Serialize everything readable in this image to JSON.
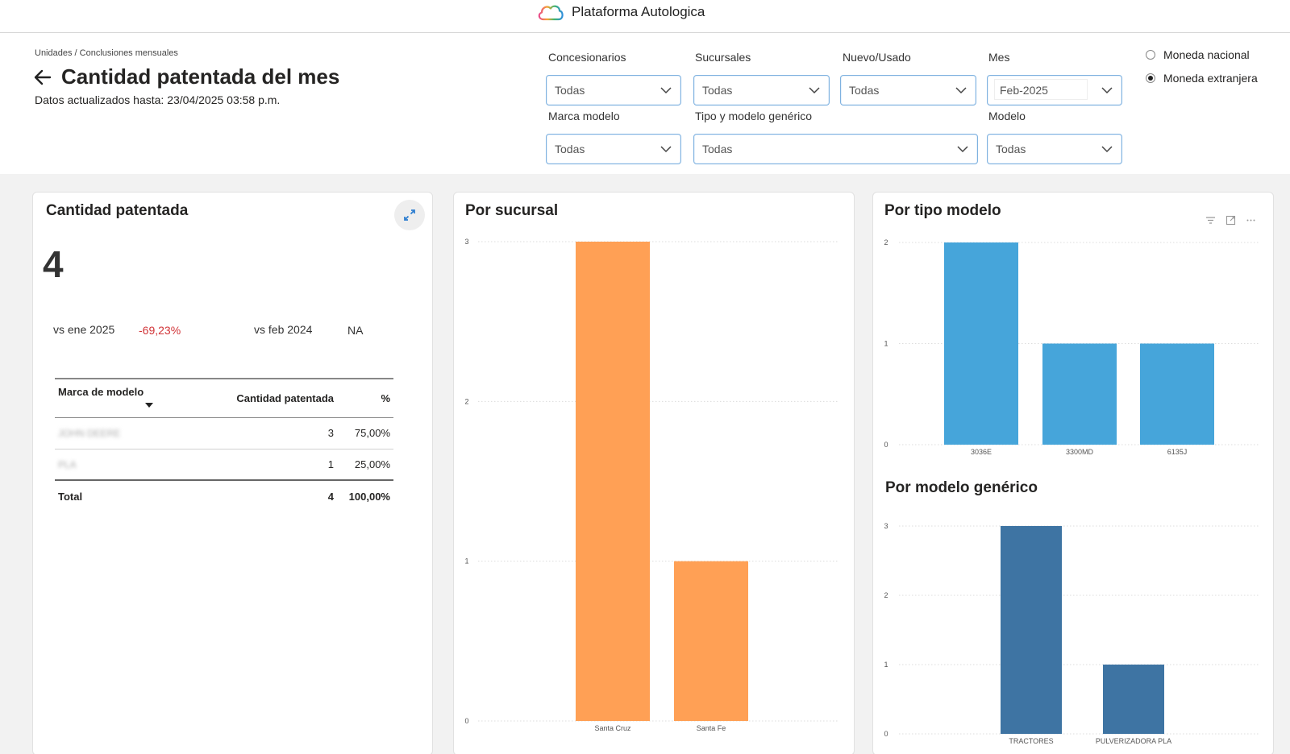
{
  "app": {
    "name": "Plataforma Autologica"
  },
  "header": {
    "breadcrumb": "Unidades / Conclusiones mensuales",
    "title": "Cantidad patentada del mes",
    "updated": "Datos actualizados hasta: 23/04/2025 03:58 p.m."
  },
  "filters": {
    "concesionarios": {
      "label": "Concesionarios",
      "value": "Todas"
    },
    "sucursales": {
      "label": "Sucursales",
      "value": "Todas"
    },
    "nuevo_usado": {
      "label": "Nuevo/Usado",
      "value": "Todas"
    },
    "mes": {
      "label": "Mes",
      "value": "Feb-2025"
    },
    "marca_modelo": {
      "label": "Marca modelo",
      "value": "Todas"
    },
    "tipo_modelo": {
      "label": "Tipo y modelo genérico",
      "value": "Todas"
    },
    "modelo": {
      "label": "Modelo",
      "value": "Todas"
    }
  },
  "currency": {
    "options": [
      {
        "label": "Moneda nacional",
        "selected": false
      },
      {
        "label": "Moneda extranjera",
        "selected": true
      }
    ]
  },
  "kpi_card": {
    "title": "Cantidad patentada",
    "value": "4",
    "cmp1_label": "vs ene 2025",
    "cmp1_value": "-69,23%",
    "cmp2_label": "vs  feb 2024",
    "cmp2_value": "NA",
    "table": {
      "headers": [
        "Marca de modelo",
        "Cantidad patentada",
        "%"
      ],
      "rows": [
        {
          "marca": "JOHN DEERE",
          "cantidad": "3",
          "pct": "75,00%"
        },
        {
          "marca": "PLA",
          "cantidad": "1",
          "pct": "25,00%"
        }
      ],
      "total": {
        "label": "Total",
        "cantidad": "4",
        "pct": "100,00%"
      }
    }
  },
  "colors": {
    "orange": "#FFA055",
    "blue": "#46A5DA",
    "darkblue": "#3E74A3",
    "negative": "#D13438"
  },
  "icons": [
    "cloud-logo-icon",
    "back-arrow-icon",
    "chevron-down-icon",
    "expand-icon",
    "filter-icon",
    "focus-icon",
    "more-icon",
    "sort-down-icon"
  ],
  "chart_data": [
    {
      "type": "bar",
      "title": "Por sucursal",
      "categories": [
        "Santa Cruz",
        "Santa Fe"
      ],
      "values": [
        3,
        1
      ],
      "ylim": [
        0,
        3
      ],
      "yticks": [
        0,
        1,
        2,
        3
      ],
      "grid": true,
      "color": "#FFA055"
    },
    {
      "type": "bar",
      "title": "Por tipo modelo",
      "categories": [
        "3036E",
        "3300MD",
        "6135J"
      ],
      "values": [
        2,
        1,
        1
      ],
      "ylim": [
        0,
        2
      ],
      "yticks": [
        0,
        1,
        2
      ],
      "grid": true,
      "color": "#46A5DA"
    },
    {
      "type": "bar",
      "title": "Por modelo genérico",
      "categories": [
        "TRACTORES",
        "PULVERIZADORA PLA"
      ],
      "values": [
        3,
        1
      ],
      "ylim": [
        0,
        3
      ],
      "yticks": [
        0,
        1,
        2,
        3
      ],
      "grid": true,
      "color": "#3E74A3"
    }
  ]
}
